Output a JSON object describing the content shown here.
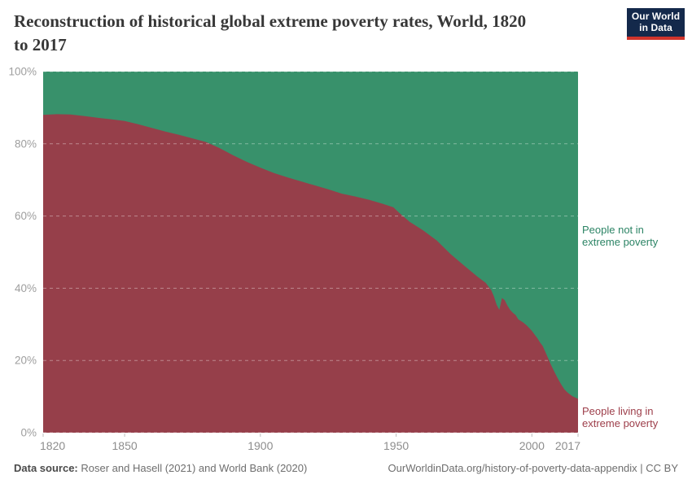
{
  "header": {
    "title_line1": "Reconstruction of historical global extreme poverty rates, World, 1820",
    "title_line2": "to 2017"
  },
  "logo": {
    "line1": "Our World",
    "line2": "in Data",
    "bg_color": "#14294b",
    "accent_color": "#d0342c"
  },
  "chart_data": {
    "type": "area",
    "stacked": true,
    "title": "Reconstruction of historical global extreme poverty rates, World, 1820 to 2017",
    "xlabel": "",
    "ylabel": "",
    "unit": "%",
    "xlim": [
      1820,
      2017
    ],
    "ylim": [
      0,
      100
    ],
    "x_ticks": [
      1820,
      1850,
      1900,
      1950,
      2000,
      2017
    ],
    "y_ticks": [
      0,
      20,
      40,
      60,
      80,
      100
    ],
    "y_tick_suffix": "%",
    "grid": "horizontal-dashed",
    "legend_position": "right",
    "x": [
      1820,
      1825,
      1830,
      1835,
      1840,
      1845,
      1850,
      1855,
      1860,
      1865,
      1870,
      1875,
      1880,
      1885,
      1890,
      1895,
      1900,
      1905,
      1910,
      1915,
      1920,
      1925,
      1930,
      1935,
      1940,
      1945,
      1949,
      1951,
      1955,
      1960,
      1965,
      1970,
      1975,
      1980,
      1983,
      1985,
      1986,
      1987,
      1988,
      1989,
      1990,
      1991,
      1992,
      1993,
      1994,
      1995,
      1996,
      1997,
      1998,
      1999,
      2000,
      2001,
      2002,
      2003,
      2004,
      2005,
      2006,
      2007,
      2008,
      2009,
      2010,
      2011,
      2012,
      2013,
      2014,
      2015,
      2016,
      2017
    ],
    "series": [
      {
        "name": "People living in extreme poverty",
        "color": "#963f4a",
        "label_color": "#9d3e4a",
        "values": [
          88.0,
          88.2,
          88.1,
          87.7,
          87.2,
          86.8,
          86.3,
          85.4,
          84.4,
          83.4,
          82.5,
          81.5,
          80.5,
          78.8,
          76.8,
          75.0,
          73.4,
          71.9,
          70.7,
          69.6,
          68.5,
          67.4,
          66.2,
          65.4,
          64.5,
          63.4,
          62.4,
          61.0,
          58.4,
          56.0,
          53.2,
          49.5,
          46.3,
          43.2,
          41.5,
          39.5,
          37.8,
          35.5,
          34.0,
          37.3,
          36.7,
          35.2,
          34.0,
          33.2,
          32.6,
          31.4,
          30.9,
          30.4,
          29.8,
          29.0,
          28.2,
          27.2,
          26.2,
          25.0,
          24.0,
          22.3,
          20.6,
          18.9,
          17.3,
          15.8,
          14.4,
          13.1,
          12.0,
          11.2,
          10.6,
          10.1,
          9.7,
          9.4
        ]
      },
      {
        "name": "People not in extreme poverty",
        "color": "#38916b",
        "label_color": "#2c8465",
        "values": [
          12.0,
          11.8,
          11.9,
          12.3,
          12.8,
          13.2,
          13.7,
          14.6,
          15.6,
          16.6,
          17.5,
          18.5,
          19.5,
          21.2,
          23.2,
          25.0,
          26.6,
          28.1,
          29.3,
          30.4,
          31.5,
          32.6,
          33.8,
          34.6,
          35.5,
          36.6,
          37.6,
          39.0,
          41.6,
          44.0,
          46.8,
          50.5,
          53.7,
          56.8,
          58.5,
          60.5,
          62.2,
          64.5,
          66.0,
          62.7,
          63.3,
          64.8,
          66.0,
          66.8,
          67.4,
          68.6,
          69.1,
          69.6,
          70.2,
          71.0,
          71.8,
          72.8,
          73.8,
          75.0,
          76.0,
          77.7,
          79.4,
          81.1,
          82.7,
          84.2,
          85.6,
          86.9,
          88.0,
          88.8,
          89.4,
          89.9,
          90.3,
          90.6
        ]
      }
    ]
  },
  "footer": {
    "source_label": "Data source:",
    "source_text": " Roser and Hasell (2021) and World Bank (2020)",
    "right_text": "OurWorldinData.org/history-of-poverty-data-appendix | CC BY"
  }
}
